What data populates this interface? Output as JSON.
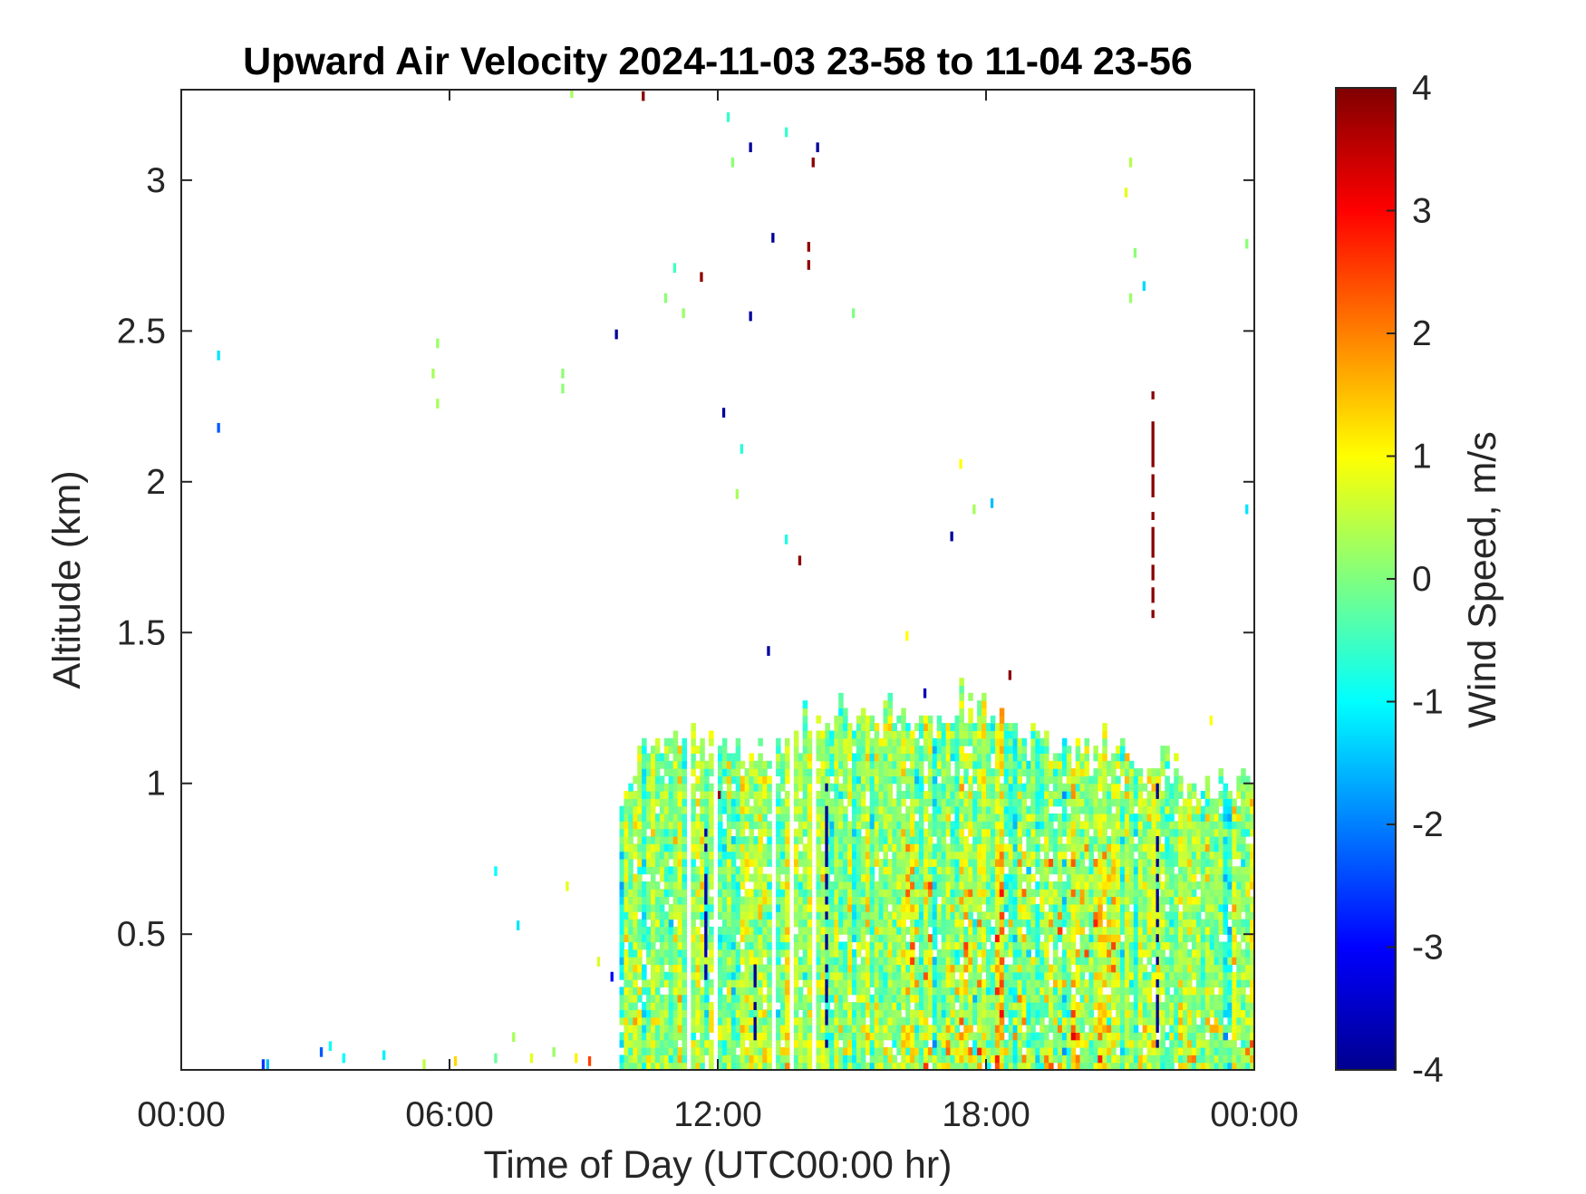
{
  "chart_data": {
    "type": "heatmap",
    "title": "Upward Air Velocity 2024-11-03 23-58 to 11-04 23-56",
    "xlabel": "Time of Day (UTC00:00 hr)",
    "ylabel": "Altitude (km)",
    "x_tick_labels": [
      "00:00",
      "06:00",
      "12:00",
      "18:00",
      "00:00"
    ],
    "x_tick_hours": [
      0,
      6,
      12,
      18,
      24
    ],
    "y_tick_labels": [
      "0.5",
      "1",
      "1.5",
      "2",
      "2.5",
      "3"
    ],
    "y_tick_values": [
      0.5,
      1,
      1.5,
      2,
      2.5,
      3
    ],
    "xlim_hours": [
      0,
      24
    ],
    "ylim_km": [
      0.05,
      3.3
    ],
    "colorbar": {
      "label": "Wind Speed, m/s",
      "tick_labels": [
        "4",
        "3",
        "2",
        "1",
        "0",
        "-1",
        "-2",
        "-3",
        "-4"
      ],
      "tick_values": [
        4,
        3,
        2,
        1,
        0,
        -1,
        -2,
        -3,
        -4
      ],
      "clim": [
        -4,
        4
      ],
      "colormap": "jet"
    },
    "grid": false,
    "main_layer": {
      "t_start_hours": 9.8,
      "t_end_hours": 24.0,
      "column_width_hours": 0.1,
      "top_km_by_hour": [
        [
          9.8,
          0.9
        ],
        [
          10.3,
          1.1
        ],
        [
          11.0,
          1.15
        ],
        [
          12.0,
          1.1
        ],
        [
          13.0,
          1.1
        ],
        [
          14.5,
          1.2
        ],
        [
          15.5,
          1.2
        ],
        [
          16.5,
          1.2
        ],
        [
          17.5,
          1.25
        ],
        [
          18.5,
          1.2
        ],
        [
          19.5,
          1.1
        ],
        [
          20.5,
          1.1
        ],
        [
          21.5,
          1.05
        ],
        [
          22.5,
          1.0
        ],
        [
          23.2,
          1.0
        ],
        [
          24.0,
          0.95
        ]
      ],
      "typical_w_ms": 0.1,
      "w_spread_ms": 0.8,
      "updraft_hours": [
        16.5,
        17.5,
        18.5,
        19.5,
        20.0,
        20.5
      ],
      "updraft_w_ms": 1.8,
      "gap_hours": [
        11.3,
        11.9,
        13.2,
        13.6,
        14.1
      ]
    },
    "streaks": [
      {
        "hour": 12.8,
        "alt_km": [
          0.1,
          0.4
        ],
        "w_ms": -3.8
      },
      {
        "hour": 14.4,
        "alt_km": [
          0.1,
          1.0
        ],
        "w_ms": -3.8
      },
      {
        "hour": 21.8,
        "alt_km": [
          0.1,
          1.0
        ],
        "w_ms": -3.8
      },
      {
        "hour": 11.7,
        "alt_km": [
          0.3,
          0.9
        ],
        "w_ms": -3.6
      },
      {
        "hour": 21.7,
        "alt_km": [
          1.5,
          2.3
        ],
        "w_ms": 3.9
      },
      {
        "hour": 12.0,
        "alt_km": [
          0.9,
          1.0
        ],
        "w_ms": 3.8
      }
    ],
    "scattered_cells": [
      {
        "hour": 0.8,
        "alt_km": 2.41,
        "w_ms": -1.2
      },
      {
        "hour": 0.8,
        "alt_km": 2.17,
        "w_ms": -2.3
      },
      {
        "hour": 5.7,
        "alt_km": 2.45,
        "w_ms": 0.2
      },
      {
        "hour": 5.6,
        "alt_km": 2.35,
        "w_ms": 0.3
      },
      {
        "hour": 5.7,
        "alt_km": 2.25,
        "w_ms": 0.3
      },
      {
        "hour": 8.5,
        "alt_km": 2.35,
        "w_ms": 0.1
      },
      {
        "hour": 8.5,
        "alt_km": 2.3,
        "w_ms": 0.1
      },
      {
        "hour": 9.7,
        "alt_km": 2.48,
        "w_ms": -3.8
      },
      {
        "hour": 10.3,
        "alt_km": 3.27,
        "w_ms": 3.9
      },
      {
        "hour": 8.7,
        "alt_km": 3.28,
        "w_ms": 0.3
      },
      {
        "hour": 10.8,
        "alt_km": 2.6,
        "w_ms": 0.1
      },
      {
        "hour": 11.0,
        "alt_km": 2.7,
        "w_ms": -0.5
      },
      {
        "hour": 11.2,
        "alt_km": 2.55,
        "w_ms": 0.2
      },
      {
        "hour": 11.6,
        "alt_km": 2.67,
        "w_ms": 3.9
      },
      {
        "hour": 12.2,
        "alt_km": 3.2,
        "w_ms": -0.6
      },
      {
        "hour": 12.3,
        "alt_km": 3.05,
        "w_ms": 0.1
      },
      {
        "hour": 12.7,
        "alt_km": 3.1,
        "w_ms": -3.8
      },
      {
        "hour": 12.7,
        "alt_km": 2.54,
        "w_ms": -3.8
      },
      {
        "hour": 13.2,
        "alt_km": 2.8,
        "w_ms": -3.8
      },
      {
        "hour": 13.5,
        "alt_km": 3.15,
        "w_ms": -0.6
      },
      {
        "hour": 14.1,
        "alt_km": 3.05,
        "w_ms": 3.9
      },
      {
        "hour": 14.2,
        "alt_km": 3.1,
        "w_ms": -3.8
      },
      {
        "hour": 14.0,
        "alt_km": 2.77,
        "w_ms": 3.9
      },
      {
        "hour": 14.0,
        "alt_km": 2.71,
        "w_ms": 3.9
      },
      {
        "hour": 12.1,
        "alt_km": 2.22,
        "w_ms": -3.8
      },
      {
        "hour": 12.5,
        "alt_km": 2.1,
        "w_ms": -0.7
      },
      {
        "hour": 12.4,
        "alt_km": 1.95,
        "w_ms": 0.3
      },
      {
        "hour": 13.1,
        "alt_km": 1.43,
        "w_ms": -3.8
      },
      {
        "hour": 13.8,
        "alt_km": 1.73,
        "w_ms": 3.9
      },
      {
        "hour": 13.5,
        "alt_km": 1.8,
        "w_ms": -0.8
      },
      {
        "hour": 15.0,
        "alt_km": 2.55,
        "w_ms": 0.0
      },
      {
        "hour": 17.4,
        "alt_km": 2.05,
        "w_ms": 1.0
      },
      {
        "hour": 17.7,
        "alt_km": 1.9,
        "w_ms": 0.3
      },
      {
        "hour": 18.1,
        "alt_km": 1.92,
        "w_ms": -1.5
      },
      {
        "hour": 17.2,
        "alt_km": 1.81,
        "w_ms": -3.8
      },
      {
        "hour": 18.5,
        "alt_km": 1.35,
        "w_ms": 3.9
      },
      {
        "hour": 16.2,
        "alt_km": 1.48,
        "w_ms": 1.0
      },
      {
        "hour": 16.6,
        "alt_km": 1.29,
        "w_ms": -3.6
      },
      {
        "hour": 21.2,
        "alt_km": 3.05,
        "w_ms": 0.4
      },
      {
        "hour": 21.1,
        "alt_km": 2.95,
        "w_ms": 0.8
      },
      {
        "hour": 21.3,
        "alt_km": 2.75,
        "w_ms": 0.1
      },
      {
        "hour": 21.5,
        "alt_km": 2.64,
        "w_ms": -1.3
      },
      {
        "hour": 21.2,
        "alt_km": 2.6,
        "w_ms": 0.2
      },
      {
        "hour": 23.0,
        "alt_km": 1.2,
        "w_ms": 1.0
      },
      {
        "hour": 23.8,
        "alt_km": 2.78,
        "w_ms": 0.1
      },
      {
        "hour": 23.8,
        "alt_km": 1.9,
        "w_ms": -1.2
      },
      {
        "hour": 7.0,
        "alt_km": 0.7,
        "w_ms": -1.0
      },
      {
        "hour": 7.5,
        "alt_km": 0.52,
        "w_ms": -1.2
      },
      {
        "hour": 8.6,
        "alt_km": 0.65,
        "w_ms": 0.8
      },
      {
        "hour": 9.3,
        "alt_km": 0.4,
        "w_ms": 0.7
      },
      {
        "hour": 9.6,
        "alt_km": 0.35,
        "w_ms": -3.0
      },
      {
        "hour": 1.8,
        "alt_km": 0.06,
        "w_ms": -2.6
      },
      {
        "hour": 1.9,
        "alt_km": 0.06,
        "w_ms": -1.5
      },
      {
        "hour": 3.1,
        "alt_km": 0.1,
        "w_ms": -2.3
      },
      {
        "hour": 3.3,
        "alt_km": 0.12,
        "w_ms": -0.9
      },
      {
        "hour": 3.6,
        "alt_km": 0.08,
        "w_ms": -1.0
      },
      {
        "hour": 4.5,
        "alt_km": 0.09,
        "w_ms": -1.1
      },
      {
        "hour": 5.4,
        "alt_km": 0.06,
        "w_ms": 0.5
      },
      {
        "hour": 6.1,
        "alt_km": 0.07,
        "w_ms": 1.3
      },
      {
        "hour": 7.0,
        "alt_km": 0.08,
        "w_ms": -0.2
      },
      {
        "hour": 7.4,
        "alt_km": 0.15,
        "w_ms": 0.3
      },
      {
        "hour": 7.8,
        "alt_km": 0.08,
        "w_ms": 0.8
      },
      {
        "hour": 8.3,
        "alt_km": 0.1,
        "w_ms": 0.2
      },
      {
        "hour": 8.8,
        "alt_km": 0.08,
        "w_ms": 1.1
      },
      {
        "hour": 9.1,
        "alt_km": 0.07,
        "w_ms": 2.5
      }
    ]
  }
}
